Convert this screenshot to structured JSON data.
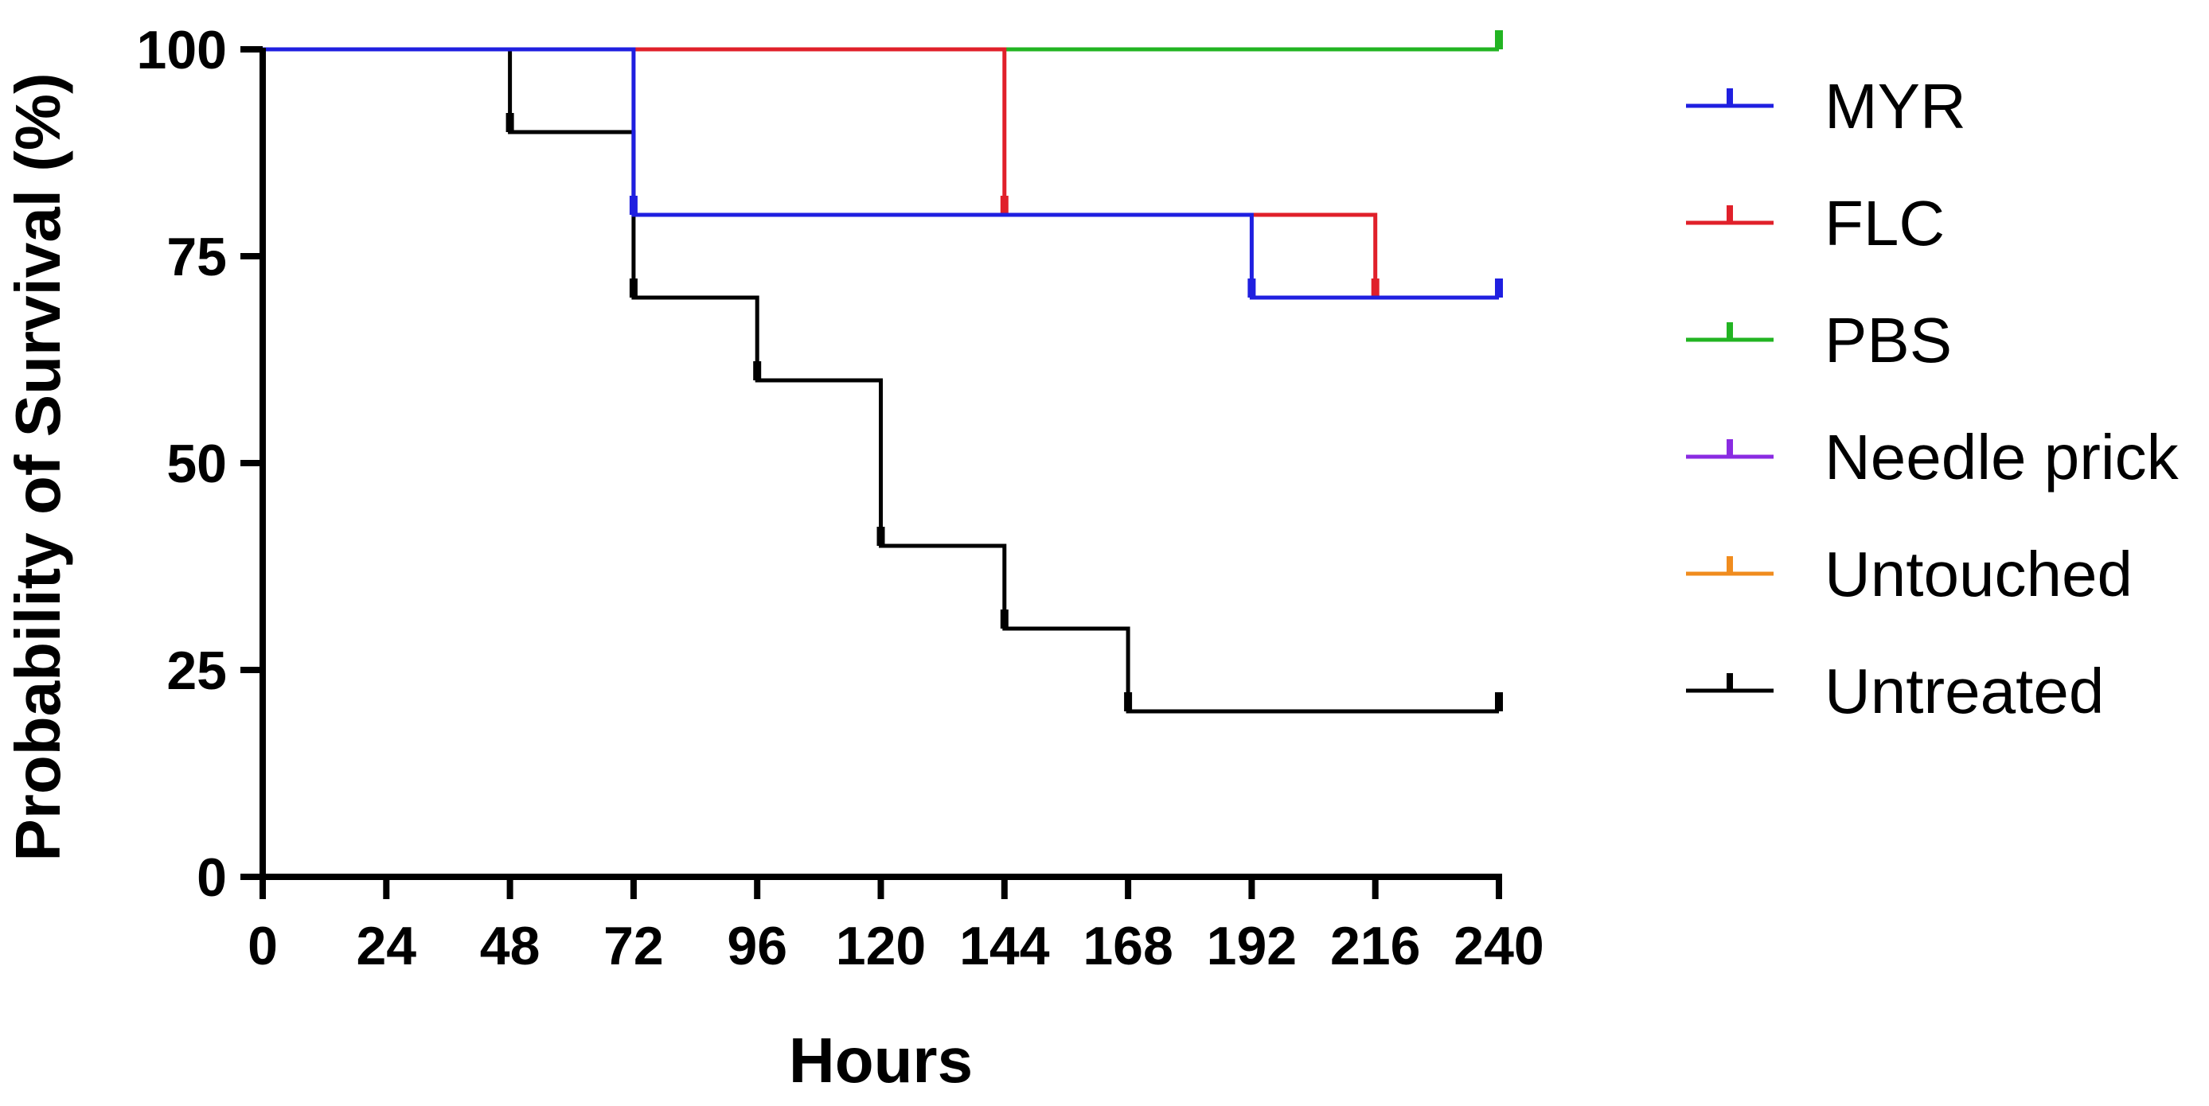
{
  "chart_data": {
    "type": "line",
    "subtype": "kaplan-meier step",
    "xlabel": "Hours",
    "ylabel": "Probability of Survival (%)",
    "xlim": [
      0,
      240
    ],
    "ylim": [
      0,
      100
    ],
    "xticks": [
      0,
      24,
      48,
      72,
      96,
      120,
      144,
      168,
      192,
      216,
      240
    ],
    "yticks": [
      0,
      25,
      50,
      75,
      100
    ],
    "grid": false,
    "legend_position": "right",
    "series": [
      {
        "name": "MYR",
        "color": "#1f1fe0",
        "x": [
          0,
          72,
          192,
          240
        ],
        "y": [
          100,
          80,
          70,
          70
        ],
        "censored": [
          240
        ]
      },
      {
        "name": "FLC",
        "color": "#e0202a",
        "x": [
          0,
          144,
          216,
          240
        ],
        "y": [
          100,
          80,
          70,
          70
        ],
        "censored": [
          240
        ]
      },
      {
        "name": "PBS",
        "color": "#22b422",
        "x": [
          0,
          240
        ],
        "y": [
          100,
          100
        ],
        "censored": [
          240
        ]
      },
      {
        "name": "Needle prick",
        "color": "#8a2be2",
        "x": [
          0,
          240
        ],
        "y": [
          100,
          100
        ],
        "censored": [
          240
        ]
      },
      {
        "name": "Untouched",
        "color": "#f08c1e",
        "x": [
          0,
          240
        ],
        "y": [
          100,
          100
        ],
        "censored": [
          240
        ]
      },
      {
        "name": "Untreated",
        "color": "#000000",
        "x": [
          0,
          48,
          72,
          96,
          120,
          144,
          168,
          240
        ],
        "y": [
          100,
          90,
          70,
          60,
          40,
          30,
          20,
          20
        ],
        "censored": [
          240
        ]
      }
    ]
  }
}
